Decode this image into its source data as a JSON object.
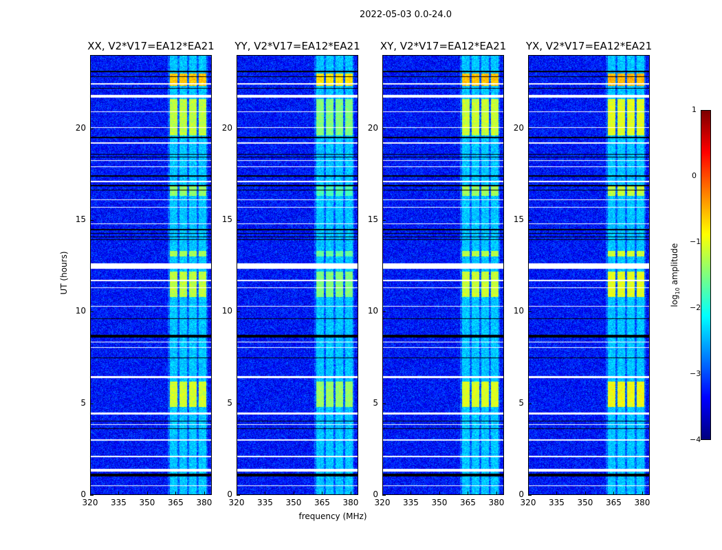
{
  "chart_data": {
    "type": "heatmap",
    "title": "2022-05-03 0.0-24.0",
    "xlabel": "frequency (MHz)",
    "ylabel": "UT (hours)",
    "xlim": [
      320,
      384
    ],
    "ylim": [
      0,
      24
    ],
    "xticks": [
      "320",
      "335",
      "350",
      "365",
      "380"
    ],
    "yticks": [
      "0",
      "5",
      "10",
      "15",
      "20"
    ],
    "panels": [
      {
        "title": "XX, V2*V17=EA12*EA21",
        "strength": 1.0
      },
      {
        "title": "YY, V2*V17=EA12*EA21",
        "strength": 1.25
      },
      {
        "title": "XY, V2*V17=EA12*EA21",
        "strength": 0.95
      },
      {
        "title": "YX, V2*V17=EA12*EA21",
        "strength": 0.85
      }
    ],
    "background_log_amplitude": -3.3,
    "rfi_subbands_mhz": [
      [
        362,
        366
      ],
      [
        367,
        371
      ],
      [
        372,
        376
      ],
      [
        377,
        381
      ]
    ],
    "rfi_bright_intervals_ut": [
      [
        22.3,
        23.0,
        -0.6
      ],
      [
        19.6,
        21.6,
        -1.2
      ],
      [
        10.8,
        12.2,
        -1.2
      ],
      [
        4.8,
        6.2,
        -1.1
      ],
      [
        16.3,
        16.9,
        -1.4
      ],
      [
        13.0,
        13.3,
        -1.3
      ]
    ],
    "flagged_rows_ut": [
      [
        1.28,
        1.42
      ],
      [
        4.4,
        4.5
      ],
      [
        6.38,
        6.48
      ],
      [
        12.35,
        12.65
      ],
      [
        21.68,
        21.82
      ],
      [
        22.38,
        22.45
      ],
      [
        0.5,
        0.54
      ],
      [
        2.08,
        2.12
      ],
      [
        2.98,
        3.02
      ],
      [
        3.83,
        3.87
      ],
      [
        8.03,
        8.07
      ],
      [
        8.33,
        8.37
      ],
      [
        10.28,
        10.32
      ],
      [
        11.28,
        11.32
      ],
      [
        11.68,
        11.72
      ],
      [
        14.78,
        14.82
      ],
      [
        15.68,
        15.72
      ],
      [
        16.08,
        16.12
      ],
      [
        17.08,
        17.12
      ],
      [
        17.88,
        17.92
      ],
      [
        18.23,
        18.27
      ],
      [
        19.18,
        19.22
      ],
      [
        20.03,
        20.07
      ],
      [
        20.88,
        20.92
      ]
    ],
    "dark_rows_ut": [
      [
        1.0,
        1.15
      ],
      [
        3.6,
        3.65
      ],
      [
        4.0,
        4.05
      ],
      [
        8.6,
        8.75
      ],
      [
        9.6,
        9.65
      ],
      [
        7.45,
        7.5
      ],
      [
        14.45,
        14.5
      ],
      [
        14.25,
        14.3
      ],
      [
        14.05,
        14.1
      ],
      [
        13.9,
        13.95
      ],
      [
        16.6,
        16.65
      ],
      [
        16.85,
        16.9
      ],
      [
        17.35,
        17.45
      ],
      [
        18.55,
        18.6
      ],
      [
        18.4,
        18.45
      ],
      [
        19.45,
        19.55
      ],
      [
        23.05,
        23.15
      ],
      [
        22.8,
        22.85
      ],
      [
        22.15,
        22.2
      ]
    ],
    "colorbar": {
      "label": "log10 amplitude",
      "label_main": "log",
      "label_sub": "10",
      "label_rest": " amplitude",
      "range": [
        -4,
        1
      ],
      "ticks": [
        "1",
        "0",
        "−1",
        "−2",
        "−3",
        "−4"
      ]
    }
  }
}
